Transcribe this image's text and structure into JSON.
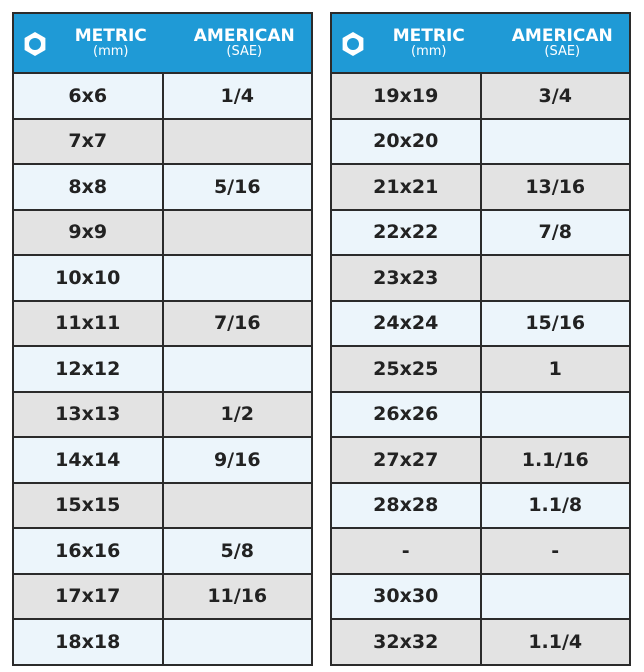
{
  "tables": [
    {
      "header": {
        "metric": "METRIC",
        "metric_unit": "(mm)",
        "american": "AMERICAN",
        "american_unit": "(SAE)"
      },
      "rows": [
        [
          "6x6",
          "1/4"
        ],
        [
          "7x7",
          null
        ],
        [
          "8x8",
          "5/16"
        ],
        [
          "9x9",
          null
        ],
        [
          "10x10",
          null
        ],
        [
          "11x11",
          "7/16"
        ],
        [
          "12x12",
          null
        ],
        [
          "13x13",
          "1/2"
        ],
        [
          "14x14",
          "9/16"
        ],
        [
          "15x15",
          null
        ],
        [
          "16x16",
          "5/8"
        ],
        [
          "17x17",
          "11/16"
        ],
        [
          "18x18",
          null
        ]
      ]
    },
    {
      "header": {
        "metric": "METRIC",
        "metric_unit": "(mm)",
        "american": "AMERICAN",
        "american_unit": "(SAE)"
      },
      "rows": [
        [
          "19x19",
          "3/4"
        ],
        [
          "20x20",
          null
        ],
        [
          "21x21",
          "13/16"
        ],
        [
          "22x22",
          "7/8"
        ],
        [
          "23x23",
          null
        ],
        [
          "24x24",
          "15/16"
        ],
        [
          "25x25",
          "1"
        ],
        [
          "26x26",
          null
        ],
        [
          "27x27",
          "1.1/16"
        ],
        [
          "28x28",
          "1.1/8"
        ],
        [
          "-",
          "-"
        ],
        [
          "30x30",
          null
        ],
        [
          "32x32",
          "1.1/4"
        ]
      ]
    }
  ]
}
